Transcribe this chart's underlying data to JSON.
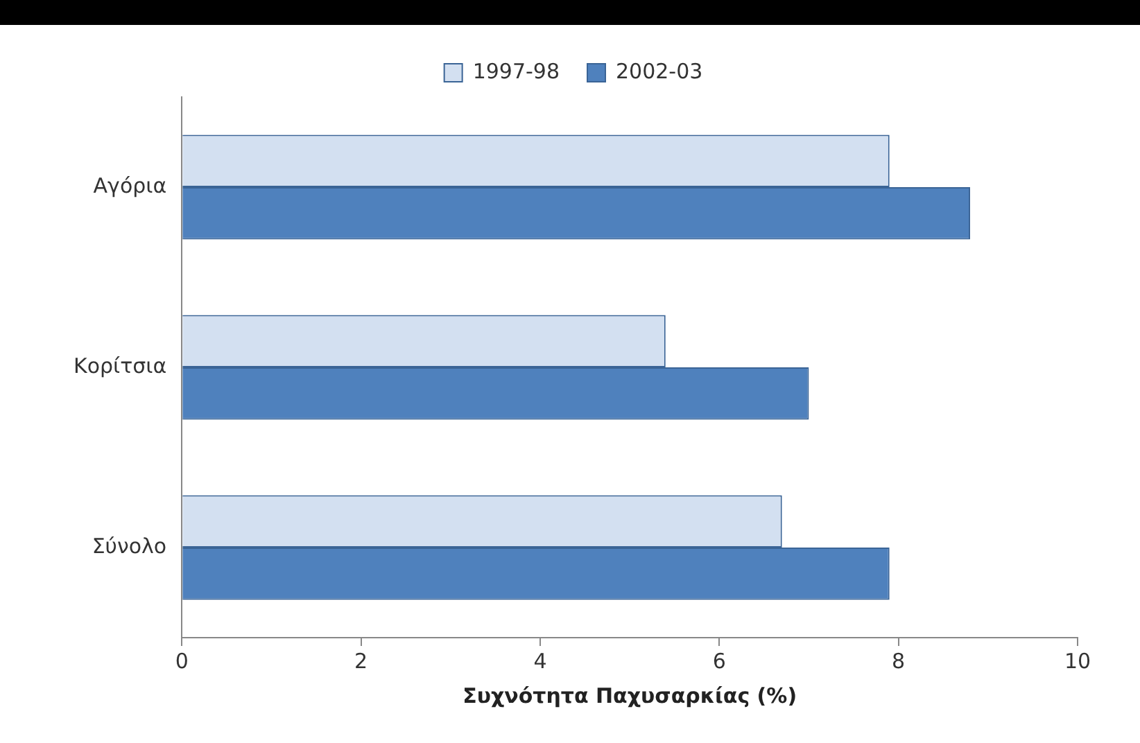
{
  "chart_data": {
    "type": "bar",
    "orientation": "horizontal",
    "xlabel": "Συχνότητα Παχυσαρκίας (%)",
    "categories": [
      "Αγόρια",
      "Κορίτσια",
      "Σύνολο"
    ],
    "series": [
      {
        "name": "1997-98",
        "color": "#d3e0f1",
        "values": [
          7.9,
          5.4,
          6.7
        ]
      },
      {
        "name": "2002-03",
        "color": "#4f81bd",
        "values": [
          8.8,
          7.0,
          7.9
        ]
      }
    ],
    "xlim": [
      0,
      10
    ],
    "xticks": [
      0,
      2,
      4,
      6,
      8,
      10
    ],
    "grid": false,
    "legend": "top"
  }
}
